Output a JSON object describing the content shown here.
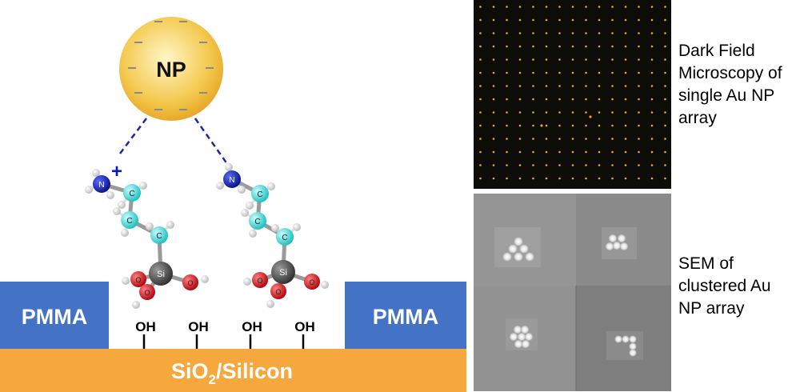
{
  "nanoparticle": {
    "label": "NP",
    "charge_symbol": "−"
  },
  "amine_charge": "+",
  "atom_labels": {
    "nitrogen": "N",
    "carbon": "C",
    "silicon": "Si",
    "oxygen": "O"
  },
  "substrate": {
    "pmma_left": "PMMA",
    "pmma_right": "PMMA",
    "oh_groups": [
      "OH",
      "OH",
      "OH",
      "OH"
    ],
    "base_label_main": "SiO",
    "base_label_sub": "2",
    "base_label_rest": "/Silicon"
  },
  "panels": {
    "dark_field": {
      "caption": "Dark Field\nMicroscopy of\nsingle Au NP\narray"
    },
    "sem": {
      "caption": "SEM of\nclustered Au\nNP array"
    }
  },
  "colors": {
    "pmma": "#4472c4",
    "substrate": "#f6a83f",
    "np_fill": "#f3c84c",
    "carbon": "#33e0e0",
    "nitrogen": "#0a1ab8",
    "oxygen": "#e0101a",
    "silicon": "#555555",
    "dash": "#1f2a9a"
  }
}
